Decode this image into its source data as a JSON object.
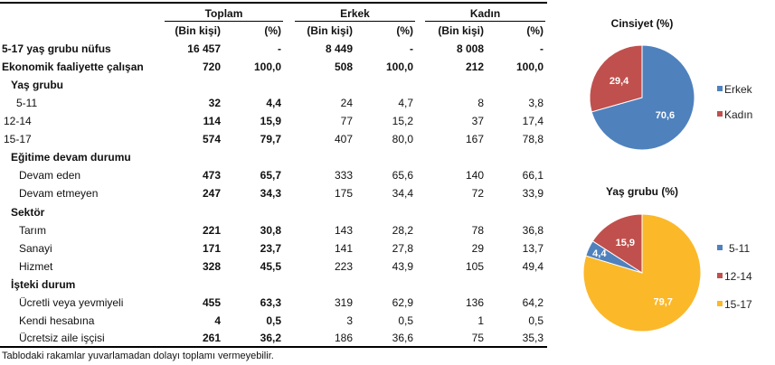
{
  "table": {
    "groups": [
      "Toplam",
      "Erkek",
      "Kadın"
    ],
    "subheaders": [
      "(Bin kişi)",
      "(%)",
      "(Bin kişi)",
      "(%)",
      "(Bin kişi)",
      "(%)"
    ],
    "rows": [
      {
        "label": "5-17 yaş grubu nüfus",
        "type": "total",
        "values": [
          "16 457",
          "-",
          "8 449",
          "-",
          "8 008",
          "-"
        ]
      },
      {
        "label": "Ekonomik faaliyette çalışan",
        "type": "total",
        "values": [
          "720",
          "100,0",
          "508",
          "100,0",
          "212",
          "100,0"
        ]
      },
      {
        "label": "Yaş grubu",
        "type": "heading",
        "values": []
      },
      {
        "label": "5-11",
        "type": "item-age1",
        "values": [
          "32",
          "4,4",
          "24",
          "4,7",
          "8",
          "3,8"
        ]
      },
      {
        "label": "12-14",
        "type": "item-age",
        "values": [
          "114",
          "15,9",
          "77",
          "15,2",
          "37",
          "17,4"
        ]
      },
      {
        "label": "15-17",
        "type": "item-age",
        "values": [
          "574",
          "79,7",
          "407",
          "80,0",
          "167",
          "78,8"
        ]
      },
      {
        "label": "Eğitime devam durumu",
        "type": "heading",
        "values": []
      },
      {
        "label": "Devam eden",
        "type": "item",
        "values": [
          "473",
          "65,7",
          "333",
          "65,6",
          "140",
          "66,1"
        ]
      },
      {
        "label": "Devam etmeyen",
        "type": "item",
        "values": [
          "247",
          "34,3",
          "175",
          "34,4",
          "72",
          "33,9"
        ]
      },
      {
        "label": "Sektör",
        "type": "heading",
        "values": []
      },
      {
        "label": "Tarım",
        "type": "item",
        "values": [
          "221",
          "30,8",
          "143",
          "28,2",
          "78",
          "36,8"
        ]
      },
      {
        "label": "Sanayi",
        "type": "item",
        "values": [
          "171",
          "23,7",
          "141",
          "27,8",
          "29",
          "13,7"
        ]
      },
      {
        "label": "Hizmet",
        "type": "item",
        "values": [
          "328",
          "45,5",
          "223",
          "43,9",
          "105",
          "49,4"
        ]
      },
      {
        "label": "İşteki durum",
        "type": "heading",
        "values": []
      },
      {
        "label": "Ücretli veya yevmiyeli",
        "type": "item",
        "values": [
          "455",
          "63,3",
          "319",
          "62,9",
          "136",
          "64,2"
        ]
      },
      {
        "label": "Kendi hesabına",
        "type": "item",
        "values": [
          "4",
          "0,5",
          "3",
          "0,5",
          "1",
          "0,5"
        ]
      },
      {
        "label": "Ücretsiz aile işçisi",
        "type": "item",
        "values": [
          "261",
          "36,2",
          "186",
          "36,6",
          "75",
          "35,3"
        ]
      }
    ],
    "footnote": "Tablodaki rakamlar yuvarlamadan dolayı toplamı vermeyebilir."
  },
  "chart_data": [
    {
      "type": "pie",
      "title": "Cinsiyet (%)",
      "categories": [
        "Erkek",
        "Kadın"
      ],
      "values": [
        70.6,
        29.4
      ],
      "data_labels": [
        "70,6",
        "29,4"
      ],
      "colors": [
        "#4f81bd",
        "#c0504d"
      ],
      "legend": "right"
    },
    {
      "type": "pie",
      "title": "Yaş grubu (%)",
      "categories": [
        "5-11",
        "12-14",
        "15-17"
      ],
      "values": [
        4.4,
        15.9,
        79.7
      ],
      "data_labels": [
        "4,4",
        "15,9",
        "79,7"
      ],
      "colors": [
        "#4f81bd",
        "#c0504d",
        "#fbb829"
      ],
      "legend": "right"
    }
  ]
}
